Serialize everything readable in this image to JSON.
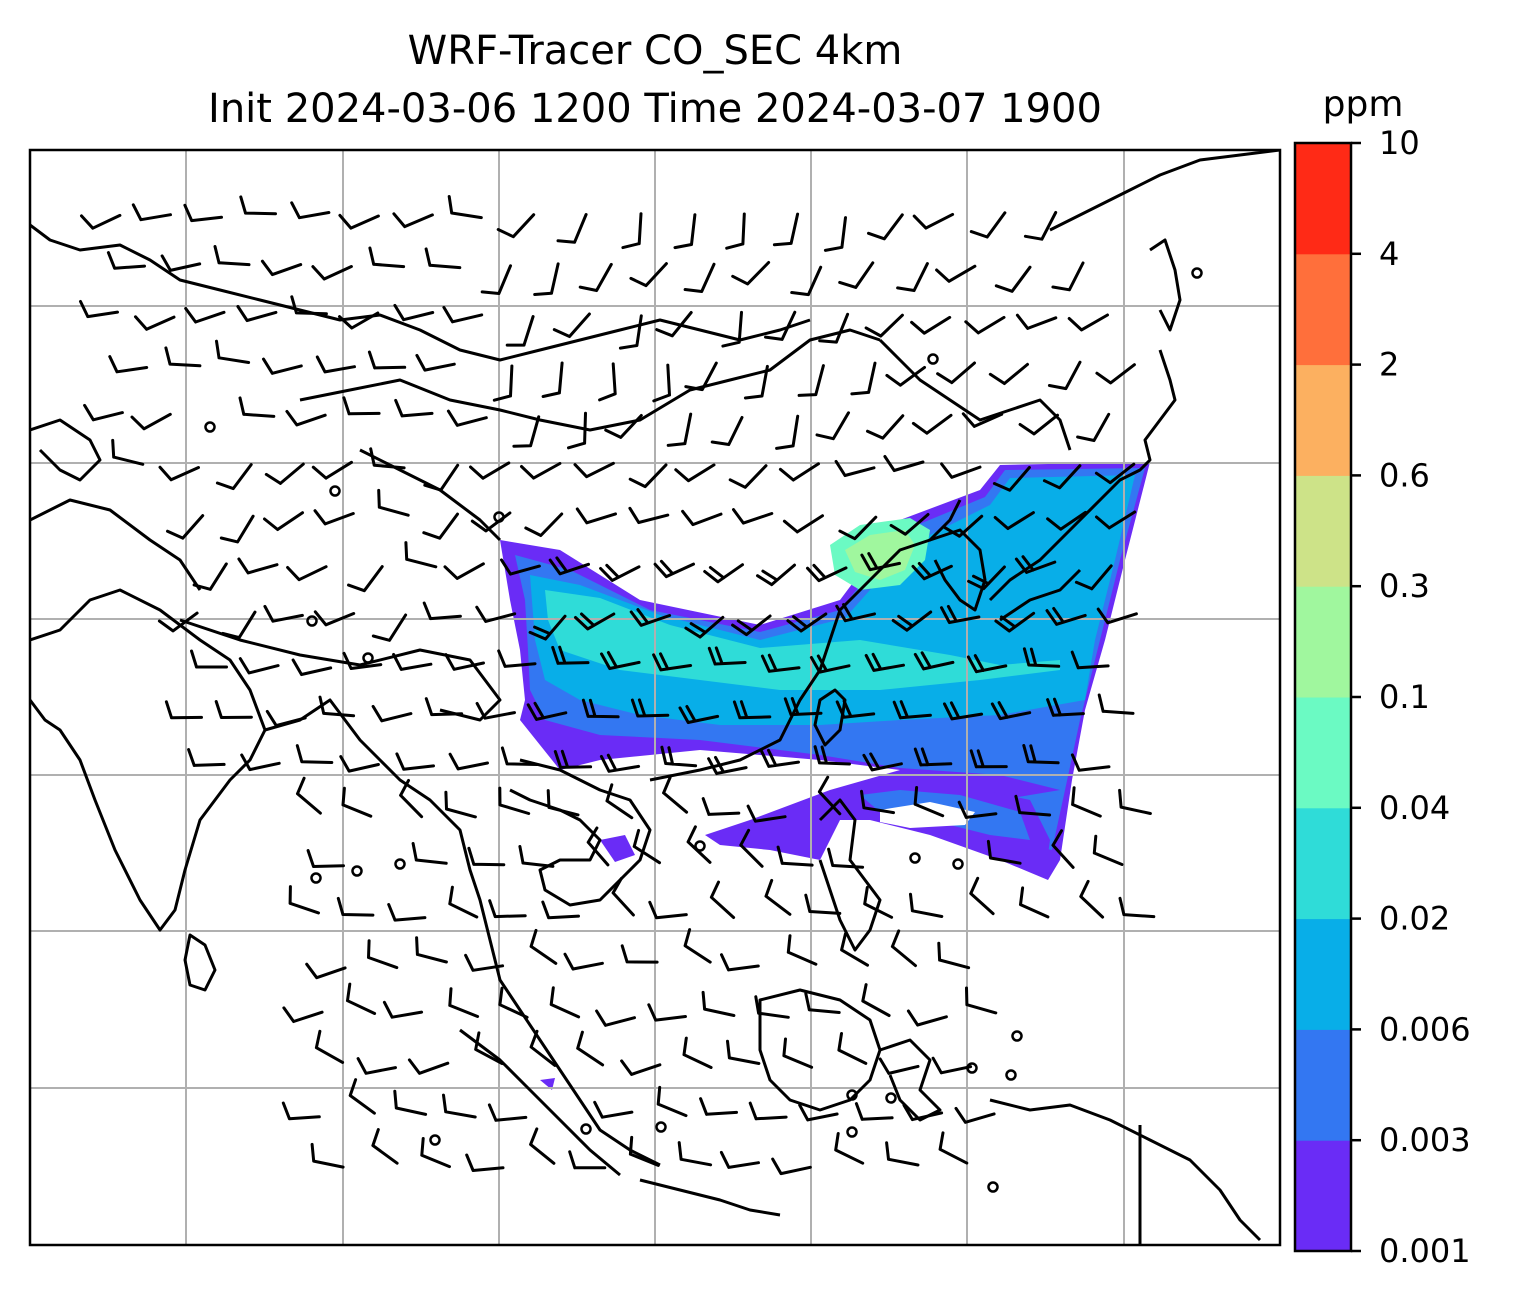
{
  "title": {
    "line1": "WRF-Tracer CO_SEC 4km",
    "line2": "Init 2024-03-06 1200 Time 2024-03-07 1900"
  },
  "colorbar": {
    "unit": "ppm",
    "levels": [
      "0.001",
      "0.003",
      "0.006",
      "0.02",
      "0.04",
      "0.1",
      "0.3",
      "0.6",
      "2",
      "4",
      "10"
    ],
    "colors": [
      "#6a2cf6",
      "#3377f2",
      "#08aee8",
      "#2fdcd8",
      "#6bfac3",
      "#a0f79e",
      "#cde388",
      "#fcb060",
      "#ff6f3b",
      "#ff2a16"
    ]
  },
  "map": {
    "gridlines": true,
    "coastline_color": "#000000",
    "gridline_color": "#b0b0b0",
    "wind_barbs": true
  }
}
